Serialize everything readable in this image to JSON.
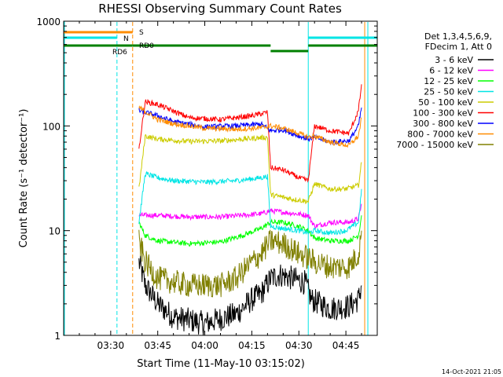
{
  "chart_data": {
    "type": "line",
    "title": "RHESSI Observing Summary Count Rates",
    "xlabel": "Start Time (11-May-10 03:15:02)",
    "ylabel": "Count Rate (s⁻¹ detector⁻¹)",
    "y_scale": "log",
    "ylim": [
      1,
      1000
    ],
    "xlim": [
      "03:15",
      "04:55"
    ],
    "x_ticks": [
      "03:30",
      "03:45",
      "04:00",
      "04:15",
      "04:30",
      "04:45"
    ],
    "y_ticks": [
      "1",
      "10",
      "100",
      "1000"
    ],
    "timestamp": "14-Oct-2021 21:05",
    "legend_header": [
      "Det 1,3,4,5,6,9,",
      "FDecim 1, Att 0"
    ],
    "legend_placement": "right",
    "flag_labels": {
      "saa": "S",
      "night": "N",
      "rd0": "RD0",
      "rd6": "RD6"
    },
    "vertical_markers": [
      {
        "x": "03:32",
        "color": "#00e5e5"
      },
      {
        "x": "03:37",
        "color": "#ff8c00"
      },
      {
        "x": "04:33",
        "color": "#00e5e5"
      },
      {
        "x": "04:51",
        "color": "#ff8c00"
      },
      {
        "x": "04:52",
        "color": "#00e5e5"
      }
    ],
    "gaps": [
      [
        "03:15",
        "03:39"
      ],
      [
        "04:51",
        "04:55"
      ]
    ],
    "series": [
      {
        "name": "3 - 6 keV",
        "color": "#000000",
        "points": [
          [
            "03:39",
            5
          ],
          [
            "03:41",
            3
          ],
          [
            "03:45",
            2
          ],
          [
            "03:50",
            1.5
          ],
          [
            "04:00",
            1.3
          ],
          [
            "04:10",
            1.6
          ],
          [
            "04:15",
            2.2
          ],
          [
            "04:18",
            2.5
          ],
          [
            "04:21",
            3.5
          ],
          [
            "04:24",
            3.8
          ],
          [
            "04:28",
            3.5
          ],
          [
            "04:32",
            3.2
          ],
          [
            "04:34",
            2.2
          ],
          [
            "04:40",
            1.8
          ],
          [
            "04:46",
            1.9
          ],
          [
            "04:49",
            2.2
          ],
          [
            "04:50",
            3
          ]
        ]
      },
      {
        "name": "6 - 12 keV",
        "color": "#ff00ff",
        "points": [
          [
            "03:39",
            14
          ],
          [
            "03:45",
            14
          ],
          [
            "03:55",
            13.5
          ],
          [
            "04:05",
            13.5
          ],
          [
            "04:12",
            14
          ],
          [
            "04:18",
            14.5
          ],
          [
            "04:21",
            15.5
          ],
          [
            "04:25",
            15
          ],
          [
            "04:29",
            14.5
          ],
          [
            "04:33",
            14
          ],
          [
            "04:35",
            11
          ],
          [
            "04:40",
            12
          ],
          [
            "04:46",
            12
          ],
          [
            "04:49",
            13
          ],
          [
            "04:50",
            18
          ]
        ]
      },
      {
        "name": "12 - 25 keV",
        "color": "#00ff00",
        "points": [
          [
            "03:39",
            12
          ],
          [
            "03:41",
            9
          ],
          [
            "03:45",
            8
          ],
          [
            "03:55",
            7.5
          ],
          [
            "04:05",
            7.8
          ],
          [
            "04:12",
            9
          ],
          [
            "04:18",
            10.5
          ],
          [
            "04:21",
            12
          ],
          [
            "04:25",
            12
          ],
          [
            "04:30",
            11
          ],
          [
            "04:33",
            10
          ],
          [
            "04:35",
            8.5
          ],
          [
            "04:40",
            8
          ],
          [
            "04:46",
            8
          ],
          [
            "04:49",
            9
          ],
          [
            "04:50",
            14
          ]
        ]
      },
      {
        "name": "25 - 50 keV",
        "color": "#00e5e5",
        "points": [
          [
            "03:39",
            12
          ],
          [
            "03:41",
            35
          ],
          [
            "03:45",
            32
          ],
          [
            "03:50",
            30
          ],
          [
            "04:00",
            29
          ],
          [
            "04:10",
            30
          ],
          [
            "04:18",
            32
          ],
          [
            "04:20",
            33
          ],
          [
            "04:21",
            11
          ],
          [
            "04:25",
            10.5
          ],
          [
            "04:30",
            10
          ],
          [
            "04:33",
            9.5
          ],
          [
            "04:35",
            10
          ],
          [
            "04:40",
            9.5
          ],
          [
            "04:45",
            10
          ],
          [
            "04:49",
            12
          ],
          [
            "04:50",
            25
          ]
        ]
      },
      {
        "name": "50 - 100 keV",
        "color": "#cccc00",
        "points": [
          [
            "03:39",
            25
          ],
          [
            "03:41",
            80
          ],
          [
            "03:45",
            75
          ],
          [
            "03:55",
            71
          ],
          [
            "04:05",
            72
          ],
          [
            "04:15",
            76
          ],
          [
            "04:20",
            78
          ],
          [
            "04:21",
            22
          ],
          [
            "04:28",
            20
          ],
          [
            "04:33",
            19
          ],
          [
            "04:35",
            28
          ],
          [
            "04:40",
            25
          ],
          [
            "04:45",
            25
          ],
          [
            "04:49",
            27
          ],
          [
            "04:50",
            45
          ]
        ]
      },
      {
        "name": "100 - 300 keV",
        "color": "#ff0000",
        "points": [
          [
            "03:39",
            60
          ],
          [
            "03:41",
            170
          ],
          [
            "03:45",
            160
          ],
          [
            "03:55",
            120
          ],
          [
            "04:05",
            115
          ],
          [
            "04:15",
            125
          ],
          [
            "04:20",
            135
          ],
          [
            "04:21",
            40
          ],
          [
            "04:25",
            38
          ],
          [
            "04:30",
            32
          ],
          [
            "04:33",
            30
          ],
          [
            "04:35",
            100
          ],
          [
            "04:40",
            90
          ],
          [
            "04:46",
            85
          ],
          [
            "04:49",
            140
          ],
          [
            "04:50",
            250
          ]
        ]
      },
      {
        "name": "300 - 800 keV",
        "color": "#0000ff",
        "points": [
          [
            "03:39",
            140
          ],
          [
            "03:45",
            125
          ],
          [
            "03:50",
            110
          ],
          [
            "04:00",
            98
          ],
          [
            "04:10",
            100
          ],
          [
            "04:18",
            104
          ],
          [
            "04:21",
            90
          ],
          [
            "04:25",
            92
          ],
          [
            "04:30",
            80
          ],
          [
            "04:33",
            75
          ],
          [
            "04:35",
            78
          ],
          [
            "04:40",
            70
          ],
          [
            "04:46",
            72
          ],
          [
            "04:49",
            100
          ],
          [
            "04:50",
            150
          ]
        ]
      },
      {
        "name": "800 - 7000 keV",
        "color": "#ff8c00",
        "points": [
          [
            "03:39",
            150
          ],
          [
            "03:45",
            115
          ],
          [
            "03:50",
            105
          ],
          [
            "04:00",
            95
          ],
          [
            "04:10",
            93
          ],
          [
            "04:18",
            96
          ],
          [
            "04:21",
            100
          ],
          [
            "04:25",
            95
          ],
          [
            "04:30",
            85
          ],
          [
            "04:33",
            78
          ],
          [
            "04:35",
            80
          ],
          [
            "04:40",
            70
          ],
          [
            "04:46",
            65
          ],
          [
            "04:49",
            80
          ],
          [
            "04:50",
            120
          ]
        ]
      },
      {
        "name": "7000 - 15000 keV",
        "color": "#808000",
        "points": [
          [
            "03:39",
            8
          ],
          [
            "03:41",
            5
          ],
          [
            "03:45",
            3.5
          ],
          [
            "03:55",
            3
          ],
          [
            "04:05",
            3
          ],
          [
            "04:10",
            3.5
          ],
          [
            "04:15",
            5
          ],
          [
            "04:18",
            6
          ],
          [
            "04:21",
            8
          ],
          [
            "04:25",
            7.5
          ],
          [
            "04:30",
            6
          ],
          [
            "04:33",
            5.5
          ],
          [
            "04:35",
            5
          ],
          [
            "04:40",
            4.5
          ],
          [
            "04:46",
            4.5
          ],
          [
            "04:49",
            6
          ],
          [
            "04:50",
            10
          ]
        ]
      }
    ]
  }
}
